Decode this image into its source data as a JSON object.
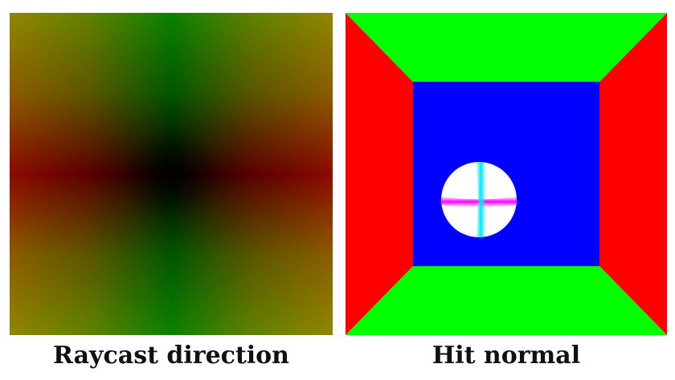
{
  "panels": [
    {
      "caption": "Raycast direction"
    },
    {
      "caption": "Hit normal"
    }
  ],
  "colors": {
    "background": "#ffffff",
    "caption_text": "#111111",
    "wall_side": "#ff0000",
    "wall_top_bottom": "#00ff00",
    "back_wall": "#0000ff",
    "sphere": "#ffffff",
    "sphere_horizontal_band": "#ff00ff",
    "sphere_vertical_band": "#00e5ff"
  }
}
